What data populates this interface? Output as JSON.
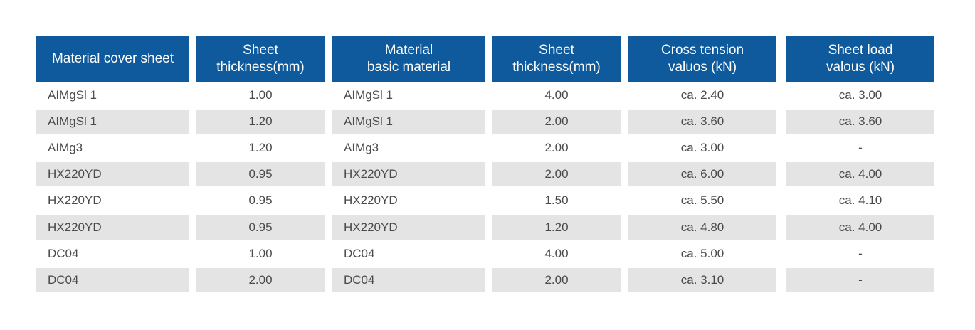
{
  "table": {
    "headers": [
      "Material cover sheet",
      "Sheet\nthickness(mm)",
      "Material\nbasic material",
      "Sheet\nthickness(mm)",
      "Cross tension\nvaluos (kN)",
      "Sheet load\nvalous (kN)"
    ],
    "rows": [
      [
        "AIMgSl 1",
        "1.00",
        "AIMgSl 1",
        "4.00",
        "ca. 2.40",
        "ca. 3.00"
      ],
      [
        "AIMgSl 1",
        "1.20",
        "AIMgSl 1",
        "2.00",
        "ca. 3.60",
        "ca. 3.60"
      ],
      [
        "AIMg3",
        "1.20",
        "AIMg3",
        "2.00",
        "ca. 3.00",
        "-"
      ],
      [
        "HX220YD",
        "0.95",
        "HX220YD",
        "2.00",
        "ca. 6.00",
        "ca. 4.00"
      ],
      [
        "HX220YD",
        "0.95",
        "HX220YD",
        "1.50",
        "ca. 5.50",
        "ca. 4.10"
      ],
      [
        "HX220YD",
        "0.95",
        "HX220YD",
        "1.20",
        "ca. 4.80",
        "ca. 4.00"
      ],
      [
        "DC04",
        "1.00",
        "DC04",
        "4.00",
        "ca. 5.00",
        "-"
      ],
      [
        "DC04",
        "2.00",
        "DC04",
        "2.00",
        "ca. 3.10",
        "-"
      ]
    ]
  },
  "colors": {
    "header_bg": "#0e5a9c",
    "header_text": "#ffffff",
    "row_shade": "#e4e4e4",
    "cell_text": "#4a4a4a"
  }
}
